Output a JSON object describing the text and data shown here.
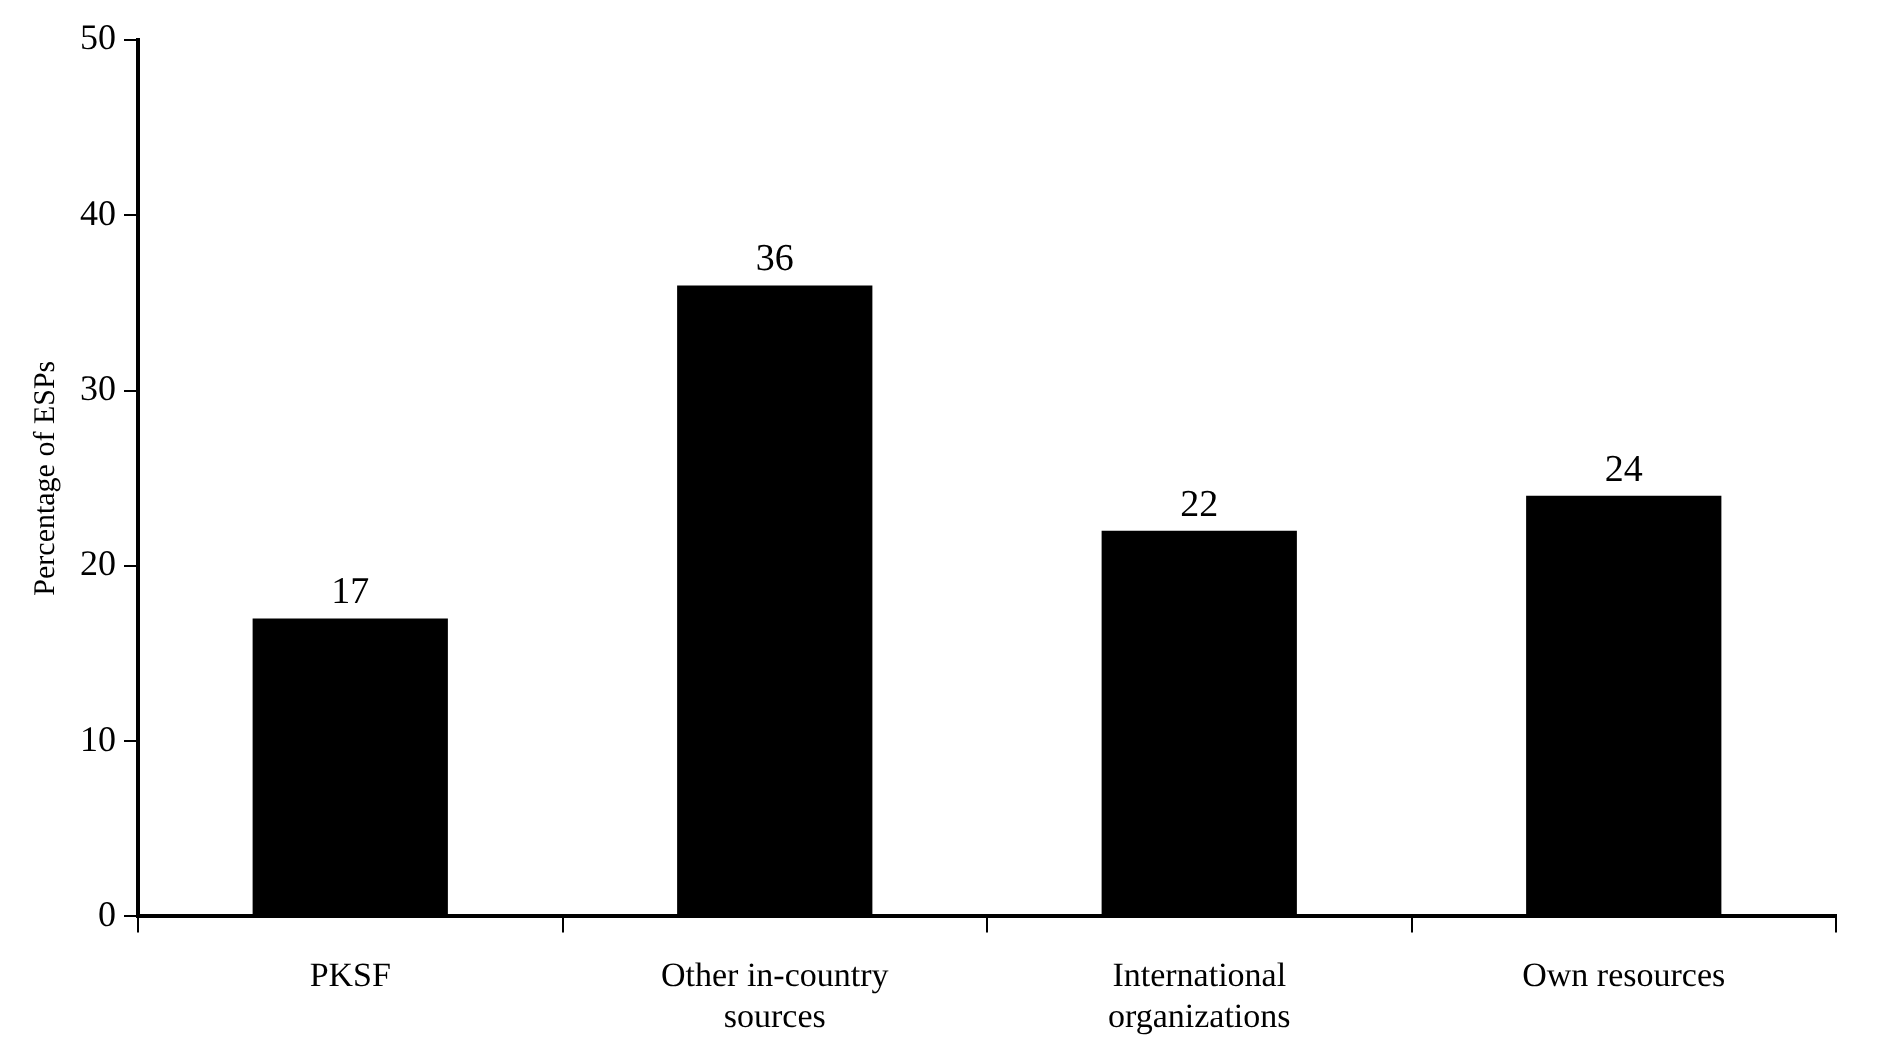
{
  "chart_data": {
    "type": "bar",
    "ylabel": "Percentage of ESPs",
    "categories": [
      "PKSF",
      "Other in-country sources",
      "International organizations",
      "Own resources"
    ],
    "values": [
      17,
      36,
      22,
      24
    ],
    "color": "#000000",
    "ylim": [
      0,
      50
    ],
    "yticks": [
      0,
      10,
      20,
      30,
      40,
      50
    ],
    "grid": false,
    "data_labels": true,
    "legend": false
  }
}
